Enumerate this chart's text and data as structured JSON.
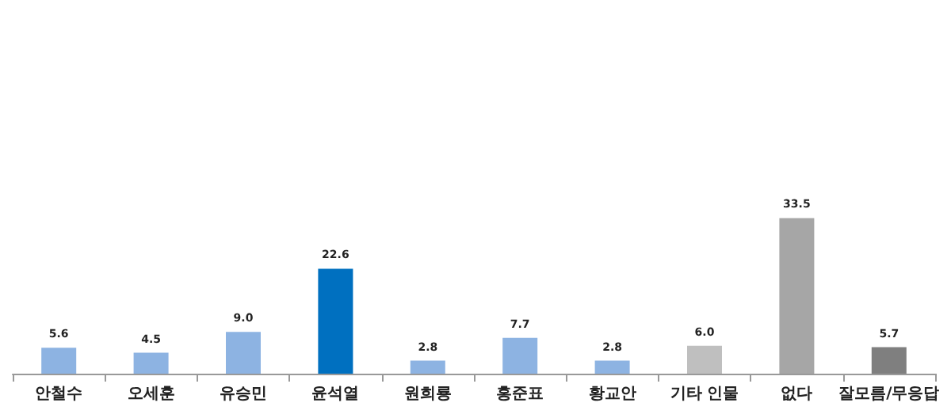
{
  "chart_data": {
    "type": "bar",
    "categories": [
      "안철수",
      "오세훈",
      "유승민",
      "윤석열",
      "원희룡",
      "홍준표",
      "황교안",
      "기타 인물",
      "없다",
      "잘모름/무응답"
    ],
    "values": [
      5.6,
      4.5,
      9.0,
      22.6,
      2.8,
      7.7,
      2.8,
      6.0,
      33.5,
      5.7
    ],
    "value_labels": [
      "5.6",
      "4.5",
      "9.0",
      "22.6",
      "2.8",
      "7.7",
      "2.8",
      "6.0",
      "33.5",
      "5.7"
    ],
    "colors": [
      "#8db3e2",
      "#8db3e2",
      "#8db3e2",
      "#0070c0",
      "#8db3e2",
      "#8db3e2",
      "#8db3e2",
      "#bfbfbf",
      "#a6a6a6",
      "#7f7f7f"
    ]
  }
}
